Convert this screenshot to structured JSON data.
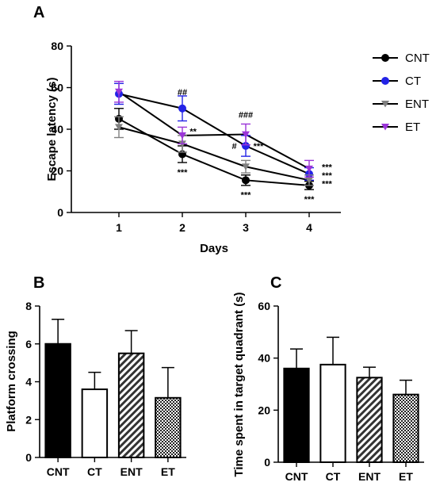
{
  "chart_data": [
    {
      "panel": "A",
      "type": "line",
      "xlabel": "Days",
      "ylabel": "Escape latency (s)",
      "x": [
        1,
        2,
        3,
        4
      ],
      "xlim": [
        0.25,
        4.5
      ],
      "ylim": [
        0,
        80
      ],
      "yticks": [
        0,
        20,
        40,
        60,
        80
      ],
      "series": [
        {
          "name": "CNT",
          "color": "#000000",
          "marker": "circle",
          "values": [
            45,
            28,
            15.5,
            13
          ],
          "errors": [
            5,
            4,
            2.5,
            2
          ]
        },
        {
          "name": "CT",
          "color": "#2323e6",
          "marker": "circle",
          "values": [
            57,
            50,
            32,
            18.5
          ],
          "errors": [
            5,
            6,
            5,
            3
          ]
        },
        {
          "name": "ENT",
          "color": "#808080",
          "marker": "triangle-down",
          "values": [
            41,
            33,
            22,
            15.5
          ],
          "errors": [
            5,
            4,
            3,
            2.5
          ]
        },
        {
          "name": "ET",
          "color": "#9b35d8",
          "marker": "triangle-down",
          "values": [
            58,
            37,
            37.5,
            21
          ],
          "errors": [
            5,
            4,
            5,
            4
          ]
        }
      ],
      "annotations": [
        {
          "text": "##",
          "x": 2,
          "y": 58
        },
        {
          "text": "**",
          "x": 2.17,
          "y": 39
        },
        {
          "text": "***",
          "x": 2,
          "y": 19.5
        },
        {
          "text": "###",
          "x": 3,
          "y": 47
        },
        {
          "text": "#",
          "x": 2.82,
          "y": 32
        },
        {
          "text": "***",
          "x": 3.2,
          "y": 32
        },
        {
          "text": "***",
          "x": 3,
          "y": 8.5
        },
        {
          "text": "***",
          "x": 4.28,
          "y": 22
        },
        {
          "text": "***",
          "x": 4.28,
          "y": 18
        },
        {
          "text": "***",
          "x": 4.28,
          "y": 14
        },
        {
          "text": "***",
          "x": 4,
          "y": 6.5
        }
      ],
      "legend_position": "right"
    },
    {
      "panel": "B",
      "type": "bar",
      "ylabel": "Platform crossing",
      "categories": [
        "CNT",
        "CT",
        "ENT",
        "ET"
      ],
      "values": [
        6.0,
        3.6,
        5.5,
        3.15
      ],
      "errors": [
        1.3,
        0.9,
        1.2,
        1.6
      ],
      "fills": [
        "solid",
        "white",
        "hatch",
        "checker"
      ],
      "ylim": [
        0,
        8
      ],
      "yticks": [
        0,
        2,
        4,
        6,
        8
      ]
    },
    {
      "panel": "C",
      "type": "bar",
      "ylabel": "Time spent in target quadrant (s)",
      "categories": [
        "CNT",
        "CT",
        "ENT",
        "ET"
      ],
      "values": [
        36,
        37.5,
        32.5,
        26
      ],
      "errors": [
        7.5,
        10.5,
        4,
        5.5
      ],
      "fills": [
        "solid",
        "white",
        "hatch",
        "checker"
      ],
      "ylim": [
        0,
        60
      ],
      "yticks": [
        0,
        20,
        40,
        60
      ]
    }
  ]
}
